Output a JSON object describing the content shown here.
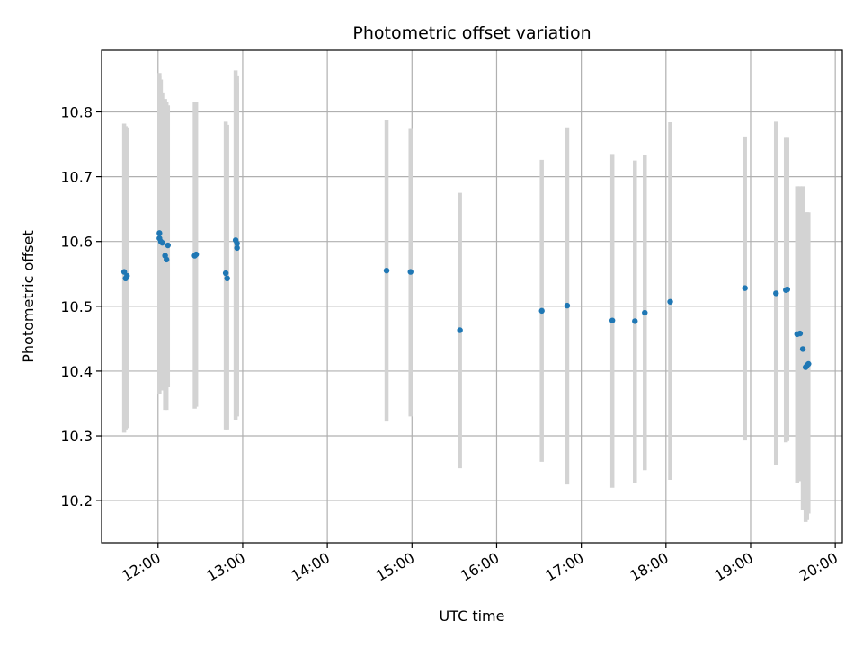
{
  "chart_data": {
    "type": "scatter",
    "title": "Photometric offset variation",
    "xlabel": "UTC time",
    "ylabel": "Photometric offset",
    "x_ticks": [
      "12:00",
      "13:00",
      "14:00",
      "15:00",
      "16:00",
      "17:00",
      "18:00",
      "19:00",
      "20:00"
    ],
    "y_ticks": [
      "10.2",
      "10.3",
      "10.4",
      "10.5",
      "10.6",
      "10.7",
      "10.8"
    ],
    "xlim": [
      "11:20",
      "20:05"
    ],
    "ylim": [
      10.135,
      10.895
    ],
    "grid": true,
    "legend": "none",
    "colors": {
      "points": "#1f77b4",
      "errorbars": "#d3d3d3",
      "grid": "#b0b0b0"
    },
    "series": [
      {
        "points": [
          {
            "x": "11:36",
            "y": 10.553,
            "lo": 10.305,
            "hi": 10.782
          },
          {
            "x": "11:37",
            "y": 10.543,
            "lo": 10.31,
            "hi": 10.778
          },
          {
            "x": "11:38",
            "y": 10.547,
            "lo": 10.312,
            "hi": 10.776
          },
          {
            "x": "12:01",
            "y": 10.613,
            "lo": 10.365,
            "hi": 10.86
          },
          {
            "x": "12:01",
            "y": 10.605,
            "lo": 10.37,
            "hi": 10.855
          },
          {
            "x": "12:02",
            "y": 10.6,
            "lo": 10.37,
            "hi": 10.85
          },
          {
            "x": "12:03",
            "y": 10.598,
            "lo": 10.37,
            "hi": 10.83
          },
          {
            "x": "12:05",
            "y": 10.578,
            "lo": 10.34,
            "hi": 10.82
          },
          {
            "x": "12:06",
            "y": 10.572,
            "lo": 10.34,
            "hi": 10.815
          },
          {
            "x": "12:07",
            "y": 10.594,
            "lo": 10.375,
            "hi": 10.81
          },
          {
            "x": "12:26",
            "y": 10.578,
            "lo": 10.342,
            "hi": 10.815
          },
          {
            "x": "12:27",
            "y": 10.58,
            "lo": 10.345,
            "hi": 10.815
          },
          {
            "x": "12:48",
            "y": 10.551,
            "lo": 10.31,
            "hi": 10.785
          },
          {
            "x": "12:49",
            "y": 10.543,
            "lo": 10.31,
            "hi": 10.78
          },
          {
            "x": "12:55",
            "y": 10.602,
            "lo": 10.325,
            "hi": 10.864
          },
          {
            "x": "12:56",
            "y": 10.597,
            "lo": 10.33,
            "hi": 10.855
          },
          {
            "x": "12:56",
            "y": 10.59,
            "lo": 10.34,
            "hi": 10.845
          },
          {
            "x": "14:42",
            "y": 10.555,
            "lo": 10.322,
            "hi": 10.787
          },
          {
            "x": "14:59",
            "y": 10.553,
            "lo": 10.33,
            "hi": 10.775
          },
          {
            "x": "15:34",
            "y": 10.463,
            "lo": 10.25,
            "hi": 10.675
          },
          {
            "x": "16:32",
            "y": 10.493,
            "lo": 10.26,
            "hi": 10.726
          },
          {
            "x": "16:50",
            "y": 10.501,
            "lo": 10.225,
            "hi": 10.776
          },
          {
            "x": "17:22",
            "y": 10.478,
            "lo": 10.22,
            "hi": 10.735
          },
          {
            "x": "17:38",
            "y": 10.477,
            "lo": 10.227,
            "hi": 10.725
          },
          {
            "x": "17:45",
            "y": 10.49,
            "lo": 10.247,
            "hi": 10.734
          },
          {
            "x": "18:03",
            "y": 10.507,
            "lo": 10.232,
            "hi": 10.784
          },
          {
            "x": "18:56",
            "y": 10.528,
            "lo": 10.293,
            "hi": 10.762
          },
          {
            "x": "19:18",
            "y": 10.52,
            "lo": 10.255,
            "hi": 10.785
          },
          {
            "x": "19:25",
            "y": 10.525,
            "lo": 10.29,
            "hi": 10.76
          },
          {
            "x": "19:26",
            "y": 10.526,
            "lo": 10.292,
            "hi": 10.76
          },
          {
            "x": "19:33",
            "y": 10.457,
            "lo": 10.228,
            "hi": 10.685
          },
          {
            "x": "19:35",
            "y": 10.458,
            "lo": 10.23,
            "hi": 10.685
          },
          {
            "x": "19:37",
            "y": 10.434,
            "lo": 10.185,
            "hi": 10.685
          },
          {
            "x": "19:39",
            "y": 10.406,
            "lo": 10.167,
            "hi": 10.645
          },
          {
            "x": "19:40",
            "y": 10.409,
            "lo": 10.17,
            "hi": 10.645
          },
          {
            "x": "19:41",
            "y": 10.411,
            "lo": 10.18,
            "hi": 10.645
          }
        ]
      }
    ]
  }
}
